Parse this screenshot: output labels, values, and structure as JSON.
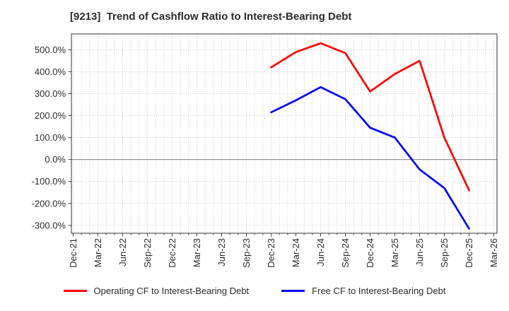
{
  "chart_data": {
    "type": "line",
    "title": "[9213]  Trend of Cashflow Ratio to Interest-Bearing Debt",
    "xlabel": "",
    "ylabel": "",
    "units": "%",
    "grid": true,
    "legend_position": "bottom",
    "x_labels": [
      "Dec-21",
      "Mar-22",
      "Jun-22",
      "Sep-22",
      "Dec-22",
      "Mar-23",
      "Jun-23",
      "Sep-23",
      "Dec-23",
      "Mar-24",
      "Jun-24",
      "Sep-24",
      "Dec-24",
      "Mar-25",
      "Jun-25",
      "Sep-25",
      "Dec-25",
      "Mar-26"
    ],
    "y_ticks": [
      "500.0%",
      "400.0%",
      "300.0%",
      "200.0%",
      "100.0%",
      "0.0%",
      "-100.0%",
      "-200.0%",
      "-300.0%"
    ],
    "y_tick_values": [
      500,
      400,
      300,
      200,
      100,
      0,
      -100,
      -200,
      -300
    ],
    "ylim": [
      -335,
      572
    ],
    "series": [
      {
        "id": "operating-cf",
        "name": "Operating CF to Interest-Bearing Debt",
        "color": "#ff0000",
        "start_index": 8,
        "x_labels_covered": [
          "Dec-23",
          "Mar-24",
          "Jun-24",
          "Sep-24",
          "Dec-24",
          "Mar-25",
          "Jun-25",
          "Sep-25",
          "Dec-25"
        ],
        "values": [
          420,
          490,
          530,
          485,
          310,
          390,
          450,
          100,
          -140
        ]
      },
      {
        "id": "free-cf",
        "name": "Free CF to Interest-Bearing Debt",
        "color": "#0000ff",
        "start_index": 8,
        "x_labels_covered": [
          "Dec-23",
          "Mar-24",
          "Jun-24",
          "Sep-24",
          "Dec-24",
          "Mar-25",
          "Jun-25",
          "Sep-25",
          "Dec-25"
        ],
        "values": [
          215,
          270,
          330,
          275,
          145,
          100,
          -45,
          -130,
          -315
        ]
      }
    ]
  }
}
